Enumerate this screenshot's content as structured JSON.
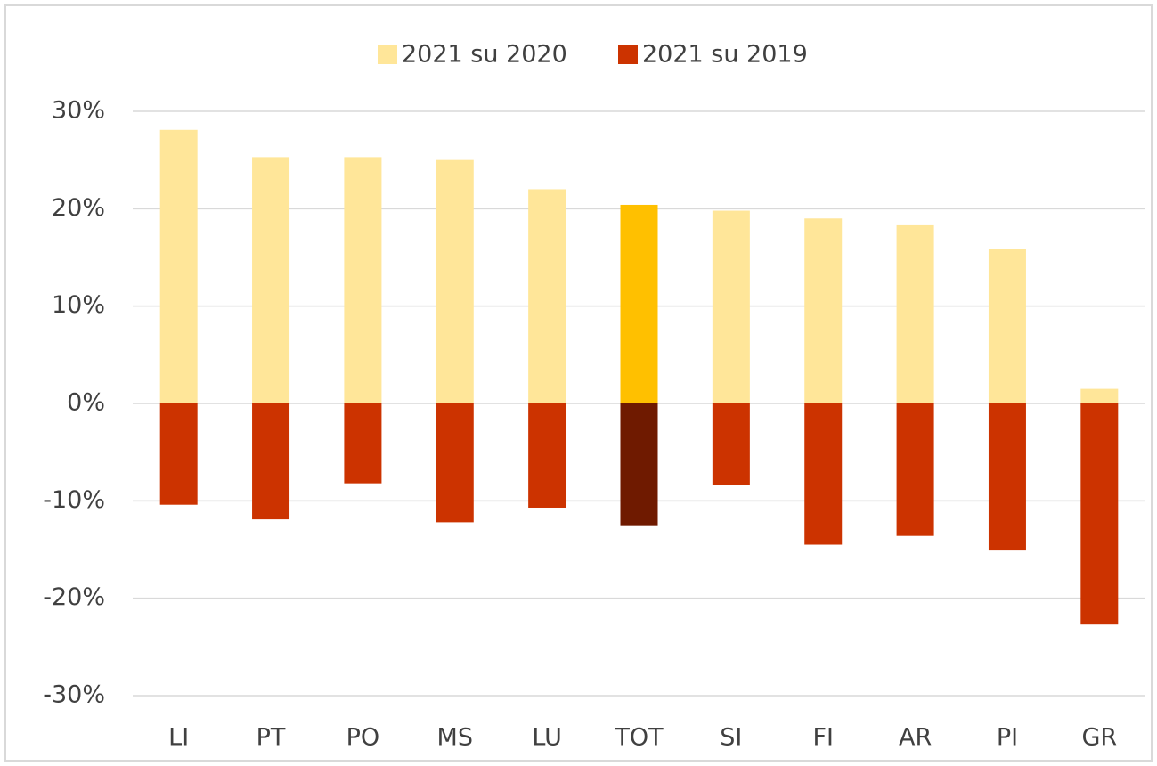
{
  "chart_data": {
    "type": "bar",
    "categories": [
      "LI",
      "PT",
      "PO",
      "MS",
      "LU",
      "TOT",
      "SI",
      "FI",
      "AR",
      "PI",
      "GR"
    ],
    "series": [
      {
        "name": "2021 su 2020",
        "color": "#ffe699",
        "colors": [
          "#ffe699",
          "#ffe699",
          "#ffe699",
          "#ffe699",
          "#ffe699",
          "#ffc000",
          "#ffe699",
          "#ffe699",
          "#ffe699",
          "#ffe699",
          "#ffe699"
        ],
        "values": [
          28.1,
          25.3,
          25.3,
          25.0,
          22.0,
          20.4,
          19.8,
          19.0,
          18.3,
          15.9,
          1.5
        ]
      },
      {
        "name": "2021 su 2019",
        "color": "#cc3300",
        "colors": [
          "#cc3300",
          "#cc3300",
          "#cc3300",
          "#cc3300",
          "#cc3300",
          "#6f1a00",
          "#cc3300",
          "#cc3300",
          "#cc3300",
          "#cc3300",
          "#cc3300"
        ],
        "values": [
          -10.4,
          -11.9,
          -8.2,
          -12.2,
          -10.7,
          -12.5,
          -8.4,
          -14.5,
          -13.6,
          -15.1,
          -22.7
        ]
      }
    ],
    "ylim": [
      -30,
      30
    ],
    "yticks": [
      {
        "value": -30,
        "label": "-30%"
      },
      {
        "value": -20,
        "label": "-20%"
      },
      {
        "value": -10,
        "label": "-10%"
      },
      {
        "value": 0,
        "label": "0%"
      },
      {
        "value": 10,
        "label": "10%"
      },
      {
        "value": 20,
        "label": "20%"
      },
      {
        "value": 30,
        "label": "30%"
      }
    ],
    "grid": true,
    "legend": "top"
  }
}
